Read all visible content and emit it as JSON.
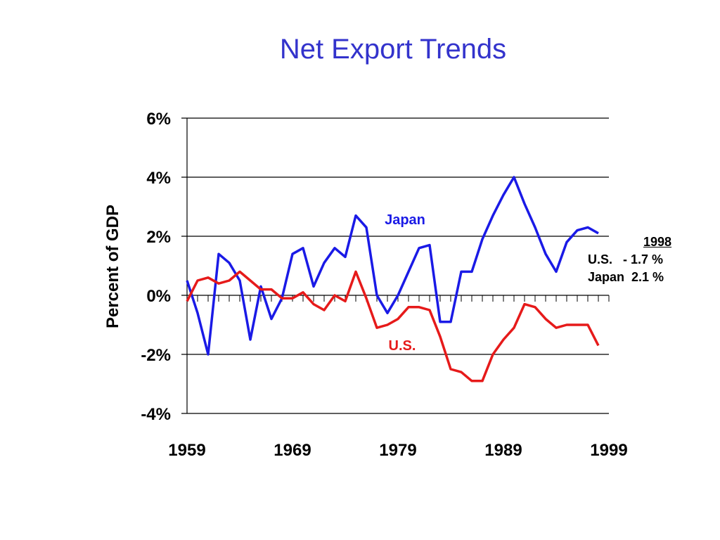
{
  "slide": {
    "title": "Net Export Trends"
  },
  "note": {
    "year": "1998",
    "us_line": "U.S.   - 1.7 %",
    "japan_line": "Japan  2.1 %"
  },
  "chart_data": {
    "type": "line",
    "title": "Net Export Trends",
    "ylabel": "Percent of GDP",
    "xlabel": "",
    "xlim": [
      1959,
      1999
    ],
    "ylim": [
      -4,
      6
    ],
    "x_ticks": [
      1959,
      1969,
      1979,
      1989,
      1999
    ],
    "x_tick_labels": [
      "1959",
      "1969",
      "1979",
      "1989",
      "1999"
    ],
    "y_ticks": [
      -4,
      -2,
      0,
      2,
      4,
      6
    ],
    "y_tick_labels": [
      "-4%",
      "-2%",
      "0%",
      "2%",
      "4%",
      "6%"
    ],
    "grid": "horizontal",
    "x": [
      1959,
      1960,
      1961,
      1962,
      1963,
      1964,
      1965,
      1966,
      1967,
      1968,
      1969,
      1970,
      1971,
      1972,
      1973,
      1974,
      1975,
      1976,
      1977,
      1978,
      1979,
      1980,
      1981,
      1982,
      1983,
      1984,
      1985,
      1986,
      1987,
      1988,
      1989,
      1990,
      1991,
      1992,
      1993,
      1994,
      1995,
      1996,
      1997,
      1998
    ],
    "series": [
      {
        "name": "Japan",
        "color": "#1a1ae6",
        "values": [
          0.5,
          -0.6,
          -2.0,
          1.4,
          1.1,
          0.5,
          -1.5,
          0.3,
          -0.8,
          -0.1,
          1.4,
          1.6,
          0.3,
          1.1,
          1.6,
          1.3,
          2.7,
          2.3,
          0.0,
          -0.6,
          0.0,
          0.8,
          1.6,
          1.7,
          -0.9,
          -0.9,
          0.8,
          0.8,
          1.9,
          2.7,
          3.4,
          4.0,
          3.1,
          2.3,
          1.4,
          0.8,
          1.8,
          2.2,
          2.3,
          2.1
        ]
      },
      {
        "name": "U.S.",
        "color": "#e61a1a",
        "values": [
          -0.2,
          0.5,
          0.6,
          0.4,
          0.5,
          0.8,
          0.5,
          0.2,
          0.2,
          -0.1,
          -0.1,
          0.1,
          -0.3,
          -0.5,
          0.0,
          -0.2,
          0.8,
          -0.1,
          -1.1,
          -1.0,
          -0.8,
          -0.4,
          -0.4,
          -0.5,
          -1.4,
          -2.5,
          -2.6,
          -2.9,
          -2.9,
          -2.0,
          -1.5,
          -1.1,
          -0.3,
          -0.4,
          -0.8,
          -1.1,
          -1.0,
          -1.0,
          -1.0,
          -1.7
        ]
      }
    ]
  }
}
